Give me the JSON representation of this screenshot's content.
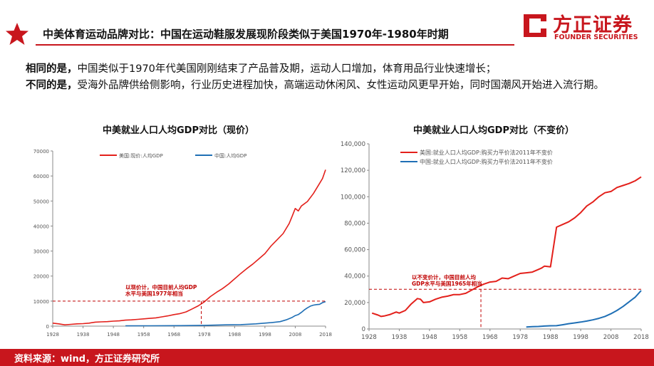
{
  "header": {
    "title": "中美体育运动品牌对比：中国在运动鞋服发展现阶段类似于美国1970年-1980年时期",
    "logo_cn": "方正证券",
    "logo_en": "FOUNDER SECURITIES",
    "accent_color": "#c8161d"
  },
  "summary": {
    "line1_label": "相同的是，",
    "line1_text": "中国类似于1970年代美国刚刚结束了产品普及期，运动人口增加，体育用品行业快速增长；",
    "line2_label": "不同的是，",
    "line2_text": "受海外品牌供给侧影响，行业历史进程加快，高端运动休闲风、女性运动风更早开始，同时国潮风开始进入流行期。"
  },
  "footer": {
    "source": "资料来源：wind，方正证券研究所"
  },
  "chart_data": [
    {
      "type": "line",
      "title": "中美就业人口人均GDP对比（现价）",
      "ylim": [
        0,
        70000
      ],
      "yticks": [
        "0",
        "10000",
        "20000",
        "30000",
        "40000",
        "50000",
        "60000",
        "70000"
      ],
      "xlim": [
        1928,
        2018
      ],
      "xticks": [
        "1928",
        "1938",
        "1948",
        "1958",
        "1968",
        "1978",
        "1988",
        "1998",
        "2008",
        "2018"
      ],
      "grid": false,
      "legend_position": "top",
      "annotation": {
        "lines": [
          "以现价计，中国目前人均GDP",
          "水平与美国1977年相当"
        ],
        "ref_y": 10000,
        "ref_x": 1977
      },
      "series": [
        {
          "name": "美国:现价:人均GDP",
          "color": "#e3201b",
          "x": [
            1928,
            1930,
            1932,
            1934,
            1936,
            1938,
            1940,
            1942,
            1944,
            1946,
            1948,
            1950,
            1952,
            1954,
            1956,
            1958,
            1960,
            1962,
            1964,
            1966,
            1968,
            1970,
            1972,
            1974,
            1976,
            1978,
            1980,
            1982,
            1984,
            1986,
            1988,
            1990,
            1992,
            1994,
            1996,
            1998,
            2000,
            2002,
            2004,
            2006,
            2007,
            2008,
            2009,
            2010,
            2012,
            2014,
            2016,
            2017,
            2018
          ],
          "values": [
            1200,
            900,
            500,
            700,
            900,
            1000,
            1200,
            1600,
            1700,
            1800,
            2000,
            2100,
            2400,
            2500,
            2700,
            2900,
            3100,
            3300,
            3700,
            4100,
            4600,
            5000,
            5700,
            6900,
            8100,
            9700,
            11800,
            13500,
            15000,
            16800,
            18900,
            21000,
            23000,
            24800,
            26900,
            29000,
            32000,
            34500,
            37000,
            41000,
            44000,
            47000,
            46000,
            48000,
            49800,
            53000,
            57000,
            59000,
            62500
          ]
        },
        {
          "name": "中国:人均GDP",
          "color": "#1f6fb5",
          "x": [
            1952,
            1960,
            1970,
            1978,
            1985,
            1990,
            1995,
            2000,
            2003,
            2005,
            2007,
            2008,
            2009,
            2010,
            2011,
            2012,
            2013,
            2014,
            2015,
            2016,
            2017,
            2018
          ],
          "values": [
            100,
            150,
            200,
            300,
            500,
            600,
            900,
            1400,
            1800,
            2500,
            3500,
            4200,
            4600,
            5500,
            6500,
            7300,
            8000,
            8400,
            8600,
            8700,
            9400,
            9800
          ]
        }
      ]
    },
    {
      "type": "line",
      "title": "中美就业人口人均GDP对比（不变价）",
      "ylim": [
        0,
        140000
      ],
      "yticks": [
        "0",
        "20,000",
        "40,000",
        "60,000",
        "80,000",
        "100,000",
        "120,000",
        "140,000"
      ],
      "xlim": [
        1928,
        2018
      ],
      "xticks": [
        "1928",
        "1938",
        "1948",
        "1958",
        "1968",
        "1978",
        "1988",
        "1998",
        "2008",
        "2018"
      ],
      "grid": false,
      "legend_position": "top",
      "annotation": {
        "lines": [
          "以不变价计，中国目前人均",
          "GDP水平与美国1965年相当"
        ],
        "ref_y": 30000,
        "ref_x": 1965
      },
      "series": [
        {
          "name": "美国:就业人口人均GDP:购买力平价法2011年不变价",
          "color": "#e3201b",
          "x": [
            1929,
            1931,
            1932,
            1933,
            1935,
            1937,
            1938,
            1940,
            1942,
            1944,
            1945,
            1946,
            1948,
            1950,
            1952,
            1954,
            1956,
            1958,
            1960,
            1962,
            1964,
            1966,
            1968,
            1970,
            1972,
            1974,
            1976,
            1978,
            1980,
            1982,
            1984,
            1985,
            1986,
            1988,
            1990,
            1992,
            1994,
            1996,
            1998,
            2000,
            2002,
            2004,
            2006,
            2008,
            2010,
            2012,
            2014,
            2016,
            2018
          ],
          "values": [
            12000,
            10500,
            9500,
            9800,
            11000,
            12800,
            12000,
            14000,
            19000,
            23000,
            22500,
            20000,
            20500,
            22500,
            24000,
            24800,
            26000,
            26000,
            27000,
            29500,
            32000,
            34000,
            35500,
            36000,
            38500,
            38000,
            40000,
            42000,
            42500,
            43000,
            45000,
            46000,
            47500,
            47000,
            77000,
            79000,
            81000,
            84000,
            88000,
            93000,
            96000,
            100000,
            103000,
            104000,
            107000,
            108500,
            110000,
            112000,
            115000
          ]
        },
        {
          "name": "中国:就业人口人均GDP:购买力平价法2011年不变价",
          "color": "#1f6fb5",
          "x": [
            1980,
            1982,
            1984,
            1986,
            1988,
            1990,
            1992,
            1994,
            1996,
            1998,
            2000,
            2002,
            2004,
            2006,
            2008,
            2010,
            2012,
            2014,
            2016,
            2018
          ],
          "values": [
            1500,
            1700,
            1900,
            2200,
            2400,
            2500,
            3200,
            4000,
            4600,
            5200,
            6000,
            6900,
            8000,
            9500,
            11500,
            14000,
            17000,
            20500,
            24000,
            29000
          ]
        }
      ]
    }
  ]
}
